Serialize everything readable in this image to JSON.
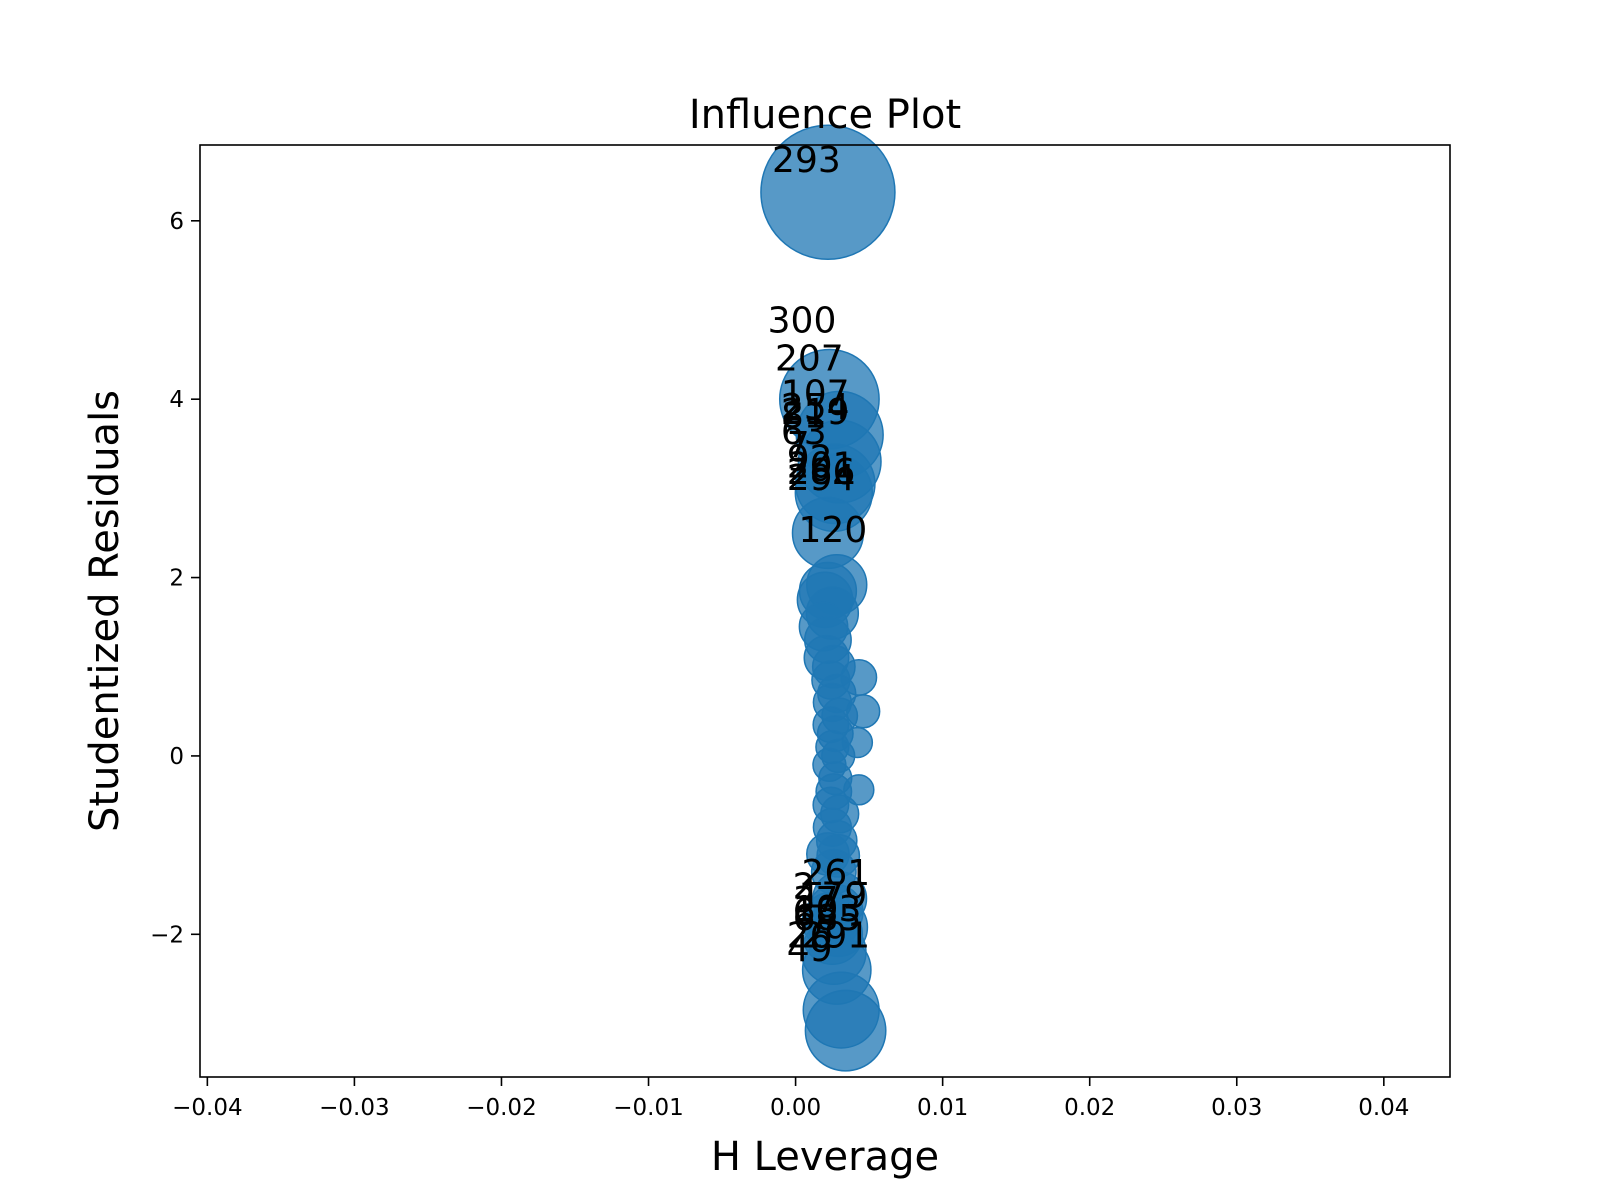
{
  "chart_data": {
    "type": "scatter",
    "title": "Influence Plot",
    "xlabel": "H Leverage",
    "ylabel": "Studentized Residuals",
    "xlim": [
      -0.0405,
      0.0445
    ],
    "ylim": [
      -3.6,
      6.85
    ],
    "grid": false,
    "legend": "none",
    "marker_color": "#1f77b4",
    "xticks": [
      {
        "value": -0.04,
        "label": "−0.04"
      },
      {
        "value": -0.03,
        "label": "−0.03"
      },
      {
        "value": -0.02,
        "label": "−0.02"
      },
      {
        "value": -0.01,
        "label": "−0.01"
      },
      {
        "value": 0.0,
        "label": "0.00"
      },
      {
        "value": 0.01,
        "label": "0.01"
      },
      {
        "value": 0.02,
        "label": "0.02"
      },
      {
        "value": 0.03,
        "label": "0.03"
      },
      {
        "value": 0.04,
        "label": "0.04"
      }
    ],
    "yticks": [
      {
        "value": -2,
        "label": "−2"
      },
      {
        "value": 0,
        "label": "0"
      },
      {
        "value": 2,
        "label": "2"
      },
      {
        "value": 4,
        "label": "4"
      },
      {
        "value": 6,
        "label": "6"
      }
    ],
    "points": [
      {
        "x": 0.0022,
        "y": 6.32,
        "influence": 1.0
      },
      {
        "x": 0.0023,
        "y": 4.0,
        "influence": 0.55
      },
      {
        "x": 0.003,
        "y": 3.6,
        "influence": 0.42
      },
      {
        "x": 0.003,
        "y": 3.3,
        "influence": 0.38
      },
      {
        "x": 0.0027,
        "y": 3.05,
        "influence": 0.35
      },
      {
        "x": 0.0026,
        "y": 2.95,
        "influence": 0.33
      },
      {
        "x": 0.0022,
        "y": 2.5,
        "influence": 0.28
      },
      {
        "x": 0.0028,
        "y": 1.92,
        "influence": 0.2
      },
      {
        "x": 0.0022,
        "y": 1.85,
        "influence": 0.18
      },
      {
        "x": 0.002,
        "y": 1.75,
        "influence": 0.17
      },
      {
        "x": 0.0025,
        "y": 1.6,
        "influence": 0.15
      },
      {
        "x": 0.0019,
        "y": 1.45,
        "influence": 0.13
      },
      {
        "x": 0.0022,
        "y": 1.3,
        "influence": 0.12
      },
      {
        "x": 0.0021,
        "y": 1.1,
        "influence": 0.11
      },
      {
        "x": 0.0026,
        "y": 1.0,
        "influence": 0.1
      },
      {
        "x": 0.0043,
        "y": 0.88,
        "influence": 0.07
      },
      {
        "x": 0.0024,
        "y": 0.85,
        "influence": 0.08
      },
      {
        "x": 0.0028,
        "y": 0.7,
        "influence": 0.08
      },
      {
        "x": 0.0025,
        "y": 0.6,
        "influence": 0.08
      },
      {
        "x": 0.0046,
        "y": 0.5,
        "influence": 0.06
      },
      {
        "x": 0.003,
        "y": 0.45,
        "influence": 0.07
      },
      {
        "x": 0.0024,
        "y": 0.35,
        "influence": 0.07
      },
      {
        "x": 0.0027,
        "y": 0.25,
        "influence": 0.07
      },
      {
        "x": 0.0042,
        "y": 0.15,
        "influence": 0.05
      },
      {
        "x": 0.0025,
        "y": 0.1,
        "influence": 0.06
      },
      {
        "x": 0.0029,
        "y": 0.0,
        "influence": 0.06
      },
      {
        "x": 0.0023,
        "y": -0.1,
        "influence": 0.06
      },
      {
        "x": 0.0027,
        "y": -0.25,
        "influence": 0.06
      },
      {
        "x": 0.0043,
        "y": -0.38,
        "influence": 0.05
      },
      {
        "x": 0.0026,
        "y": -0.4,
        "influence": 0.07
      },
      {
        "x": 0.0024,
        "y": -0.55,
        "influence": 0.07
      },
      {
        "x": 0.003,
        "y": -0.65,
        "influence": 0.08
      },
      {
        "x": 0.0025,
        "y": -0.8,
        "influence": 0.08
      },
      {
        "x": 0.0028,
        "y": -0.95,
        "influence": 0.09
      },
      {
        "x": 0.0022,
        "y": -1.1,
        "influence": 0.1
      },
      {
        "x": 0.0029,
        "y": -1.12,
        "influence": 0.1
      },
      {
        "x": 0.0026,
        "y": -1.3,
        "influence": 0.11
      },
      {
        "x": 0.003,
        "y": -1.6,
        "influence": 0.16
      },
      {
        "x": 0.0027,
        "y": -1.75,
        "influence": 0.17
      },
      {
        "x": 0.0024,
        "y": -1.85,
        "influence": 0.18
      },
      {
        "x": 0.0029,
        "y": -1.92,
        "influence": 0.19
      },
      {
        "x": 0.0025,
        "y": -2.0,
        "influence": 0.2
      },
      {
        "x": 0.0026,
        "y": -2.2,
        "influence": 0.23
      },
      {
        "x": 0.0028,
        "y": -2.4,
        "influence": 0.26
      },
      {
        "x": 0.0031,
        "y": -2.85,
        "influence": 0.32
      },
      {
        "x": 0.0034,
        "y": -3.08,
        "influence": 0.36
      }
    ],
    "annotations": [
      {
        "x": -0.0016,
        "y": 6.55,
        "label": "293"
      },
      {
        "x": -0.0019,
        "y": 4.75,
        "label": "300"
      },
      {
        "x": -0.0014,
        "y": 4.32,
        "label": "207"
      },
      {
        "x": -0.001,
        "y": 3.93,
        "label": "107"
      },
      {
        "x": -0.001,
        "y": 3.78,
        "label": "254"
      },
      {
        "x": -0.001,
        "y": 3.72,
        "label": "219"
      },
      {
        "x": -0.001,
        "y": 3.68,
        "label": "81"
      },
      {
        "x": -0.001,
        "y": 3.5,
        "label": "63"
      },
      {
        "x": -0.0006,
        "y": 3.35,
        "label": "7"
      },
      {
        "x": -0.0006,
        "y": 3.2,
        "label": "92"
      },
      {
        "x": -0.0006,
        "y": 3.12,
        "label": "201"
      },
      {
        "x": -0.0006,
        "y": 3.05,
        "label": "286"
      },
      {
        "x": -0.0006,
        "y": 2.98,
        "label": "294"
      },
      {
        "x": 0.0002,
        "y": 2.4,
        "label": "120"
      },
      {
        "x": 0.0004,
        "y": -1.45,
        "label": "261"
      },
      {
        "x": -0.0002,
        "y": -1.6,
        "label": "2"
      },
      {
        "x": 0.0002,
        "y": -1.7,
        "label": "179"
      },
      {
        "x": -0.0002,
        "y": -1.75,
        "label": "37"
      },
      {
        "x": -0.0002,
        "y": -1.85,
        "label": "103"
      },
      {
        "x": -0.0002,
        "y": -1.88,
        "label": "68"
      },
      {
        "x": -0.0002,
        "y": -1.95,
        "label": "685"
      },
      {
        "x": -0.0006,
        "y": -2.15,
        "label": "26"
      },
      {
        "x": 0.0004,
        "y": -2.15,
        "label": "291"
      },
      {
        "x": -0.0006,
        "y": -2.3,
        "label": "49"
      }
    ]
  }
}
